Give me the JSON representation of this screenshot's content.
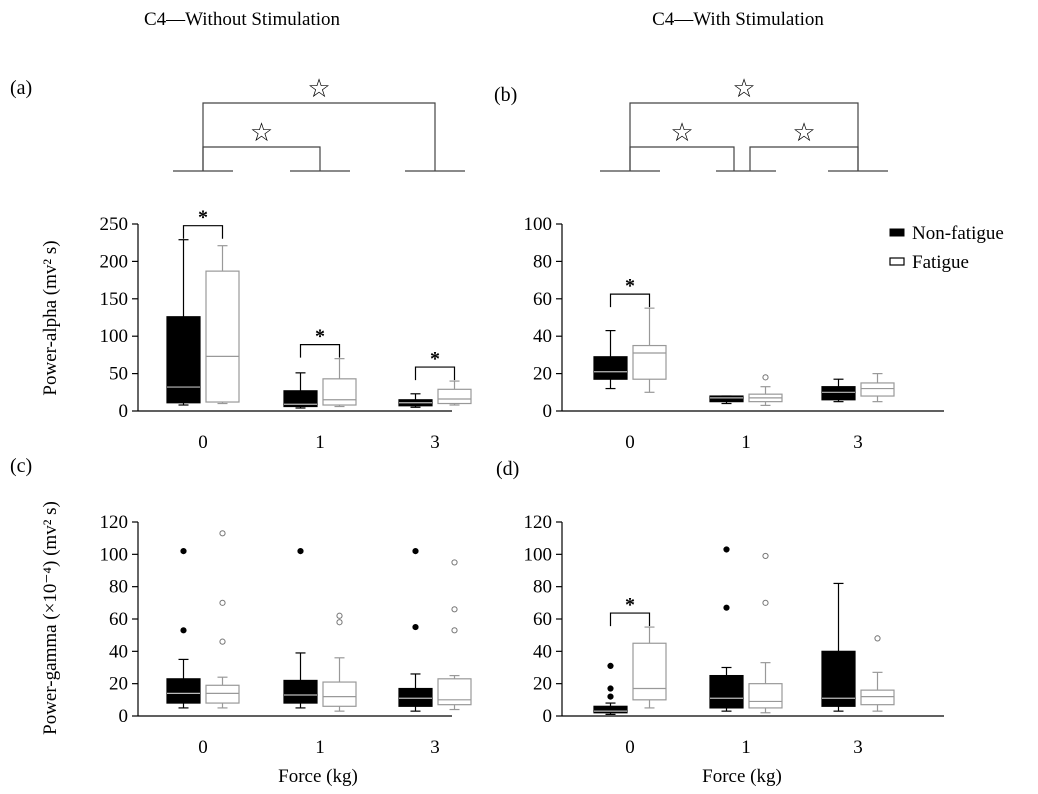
{
  "figure": {
    "titles": [
      "C4—Without Stimulation",
      "C4—With Stimulation"
    ],
    "legend": {
      "items": [
        "Non-fatigue",
        "Fatigue"
      ]
    },
    "ylabel_alpha": "Power-alpha  (mv² s)",
    "ylabel_gamma": "Power-gamma (×10⁻⁴) (mv² s)",
    "xlabel": "Force (kg)",
    "significance_symbol": "*",
    "bracket_symbol": "☆",
    "colors": {
      "nonfatigue": "#000000",
      "fatigue": "#999999",
      "bracket": "#444444"
    }
  },
  "chart_data": [
    {
      "panel": "(a)",
      "type": "box",
      "title": "C4—Without Stimulation",
      "ylabel": "Power-alpha  (mv² s)",
      "categories": [
        "0",
        "1",
        "3"
      ],
      "ylim": [
        0,
        250
      ],
      "yticks": [
        0,
        50,
        100,
        150,
        200,
        250
      ],
      "series": [
        {
          "name": "Non-fatigue",
          "boxes": [
            {
              "min": 8,
              "q1": 11,
              "median": 32,
              "q3": 126,
              "max": 229,
              "outliers": []
            },
            {
              "min": 4,
              "q1": 6,
              "median": 9,
              "q3": 27,
              "max": 51,
              "outliers": []
            },
            {
              "min": 5,
              "q1": 7,
              "median": 11,
              "q3": 15,
              "max": 23,
              "outliers": []
            }
          ]
        },
        {
          "name": "Fatigue",
          "boxes": [
            {
              "min": 10,
              "q1": 12,
              "median": 73,
              "q3": 187,
              "max": 221,
              "outliers": []
            },
            {
              "min": 6,
              "q1": 8,
              "median": 15,
              "q3": 43,
              "max": 70,
              "outliers": []
            },
            {
              "min": 8,
              "q1": 10,
              "median": 16,
              "q3": 29,
              "max": 40,
              "outliers": []
            }
          ]
        }
      ],
      "significance": [
        "0",
        "1",
        "3"
      ],
      "brackets": [
        [
          "0",
          "1"
        ],
        [
          "0",
          "3"
        ]
      ]
    },
    {
      "panel": "(b)",
      "type": "box",
      "title": "C4—With Stimulation",
      "categories": [
        "0",
        "1",
        "3"
      ],
      "ylim": [
        0,
        100
      ],
      "yticks": [
        0,
        20,
        40,
        60,
        80,
        100
      ],
      "series": [
        {
          "name": "Non-fatigue",
          "boxes": [
            {
              "min": 12,
              "q1": 17,
              "median": 21,
              "q3": 29,
              "max": 43,
              "outliers": []
            },
            {
              "min": 4,
              "q1": 5,
              "median": 7,
              "q3": 8,
              "max": 8,
              "outliers": []
            },
            {
              "min": 5,
              "q1": 6,
              "median": 10,
              "q3": 13,
              "max": 17,
              "outliers": []
            }
          ]
        },
        {
          "name": "Fatigue",
          "boxes": [
            {
              "min": 10,
              "q1": 17,
              "median": 31,
              "q3": 35,
              "max": 55,
              "outliers": []
            },
            {
              "min": 3,
              "q1": 5,
              "median": 7,
              "q3": 9,
              "max": 13,
              "outliers": [
                18
              ]
            },
            {
              "min": 5,
              "q1": 8,
              "median": 12,
              "q3": 15,
              "max": 20,
              "outliers": []
            }
          ]
        }
      ],
      "significance": [
        "0"
      ],
      "brackets": [
        [
          "0",
          "1"
        ],
        [
          "1",
          "3"
        ],
        [
          "0",
          "3"
        ]
      ]
    },
    {
      "panel": "(c)",
      "type": "box",
      "ylabel": "Power-gamma (×10⁻⁴) (mv² s)",
      "xlabel": "Force (kg)",
      "categories": [
        "0",
        "1",
        "3"
      ],
      "ylim": [
        0,
        120
      ],
      "yticks": [
        0,
        20,
        40,
        60,
        80,
        100,
        120
      ],
      "series": [
        {
          "name": "Non-fatigue",
          "boxes": [
            {
              "min": 5,
              "q1": 8,
              "median": 14,
              "q3": 23,
              "max": 35,
              "outliers": [
                53,
                102
              ]
            },
            {
              "min": 5,
              "q1": 8,
              "median": 13,
              "q3": 22,
              "max": 39,
              "outliers": [
                102
              ]
            },
            {
              "min": 3,
              "q1": 6,
              "median": 11,
              "q3": 17,
              "max": 26,
              "outliers": [
                55,
                102
              ]
            }
          ]
        },
        {
          "name": "Fatigue",
          "boxes": [
            {
              "min": 5,
              "q1": 8,
              "median": 14,
              "q3": 19,
              "max": 24,
              "outliers": [
                46,
                70,
                113
              ]
            },
            {
              "min": 3,
              "q1": 6,
              "median": 12,
              "q3": 21,
              "max": 36,
              "outliers": [
                58,
                62
              ]
            },
            {
              "min": 4,
              "q1": 7,
              "median": 10,
              "q3": 23,
              "max": 25,
              "outliers": [
                53,
                66,
                95
              ]
            }
          ]
        }
      ],
      "significance": [],
      "brackets": []
    },
    {
      "panel": "(d)",
      "type": "box",
      "xlabel": "Force (kg)",
      "categories": [
        "0",
        "1",
        "3"
      ],
      "ylim": [
        0,
        120
      ],
      "yticks": [
        0,
        20,
        40,
        60,
        80,
        100,
        120
      ],
      "series": [
        {
          "name": "Non-fatigue",
          "boxes": [
            {
              "min": 1,
              "q1": 2,
              "median": 3,
              "q3": 6,
              "max": 8,
              "outliers": [
                12,
                17,
                31
              ]
            },
            {
              "min": 3,
              "q1": 5,
              "median": 11,
              "q3": 25,
              "max": 30,
              "outliers": [
                67,
                103
              ]
            },
            {
              "min": 3,
              "q1": 6,
              "median": 11,
              "q3": 40,
              "max": 82,
              "outliers": []
            }
          ]
        },
        {
          "name": "Fatigue",
          "boxes": [
            {
              "min": 5,
              "q1": 10,
              "median": 17,
              "q3": 45,
              "max": 55,
              "outliers": []
            },
            {
              "min": 2,
              "q1": 5,
              "median": 9,
              "q3": 20,
              "max": 33,
              "outliers": [
                70,
                99
              ]
            },
            {
              "min": 3,
              "q1": 7,
              "median": 12,
              "q3": 16,
              "max": 27,
              "outliers": [
                48
              ]
            }
          ]
        }
      ],
      "significance": [
        "0"
      ],
      "brackets": []
    }
  ]
}
